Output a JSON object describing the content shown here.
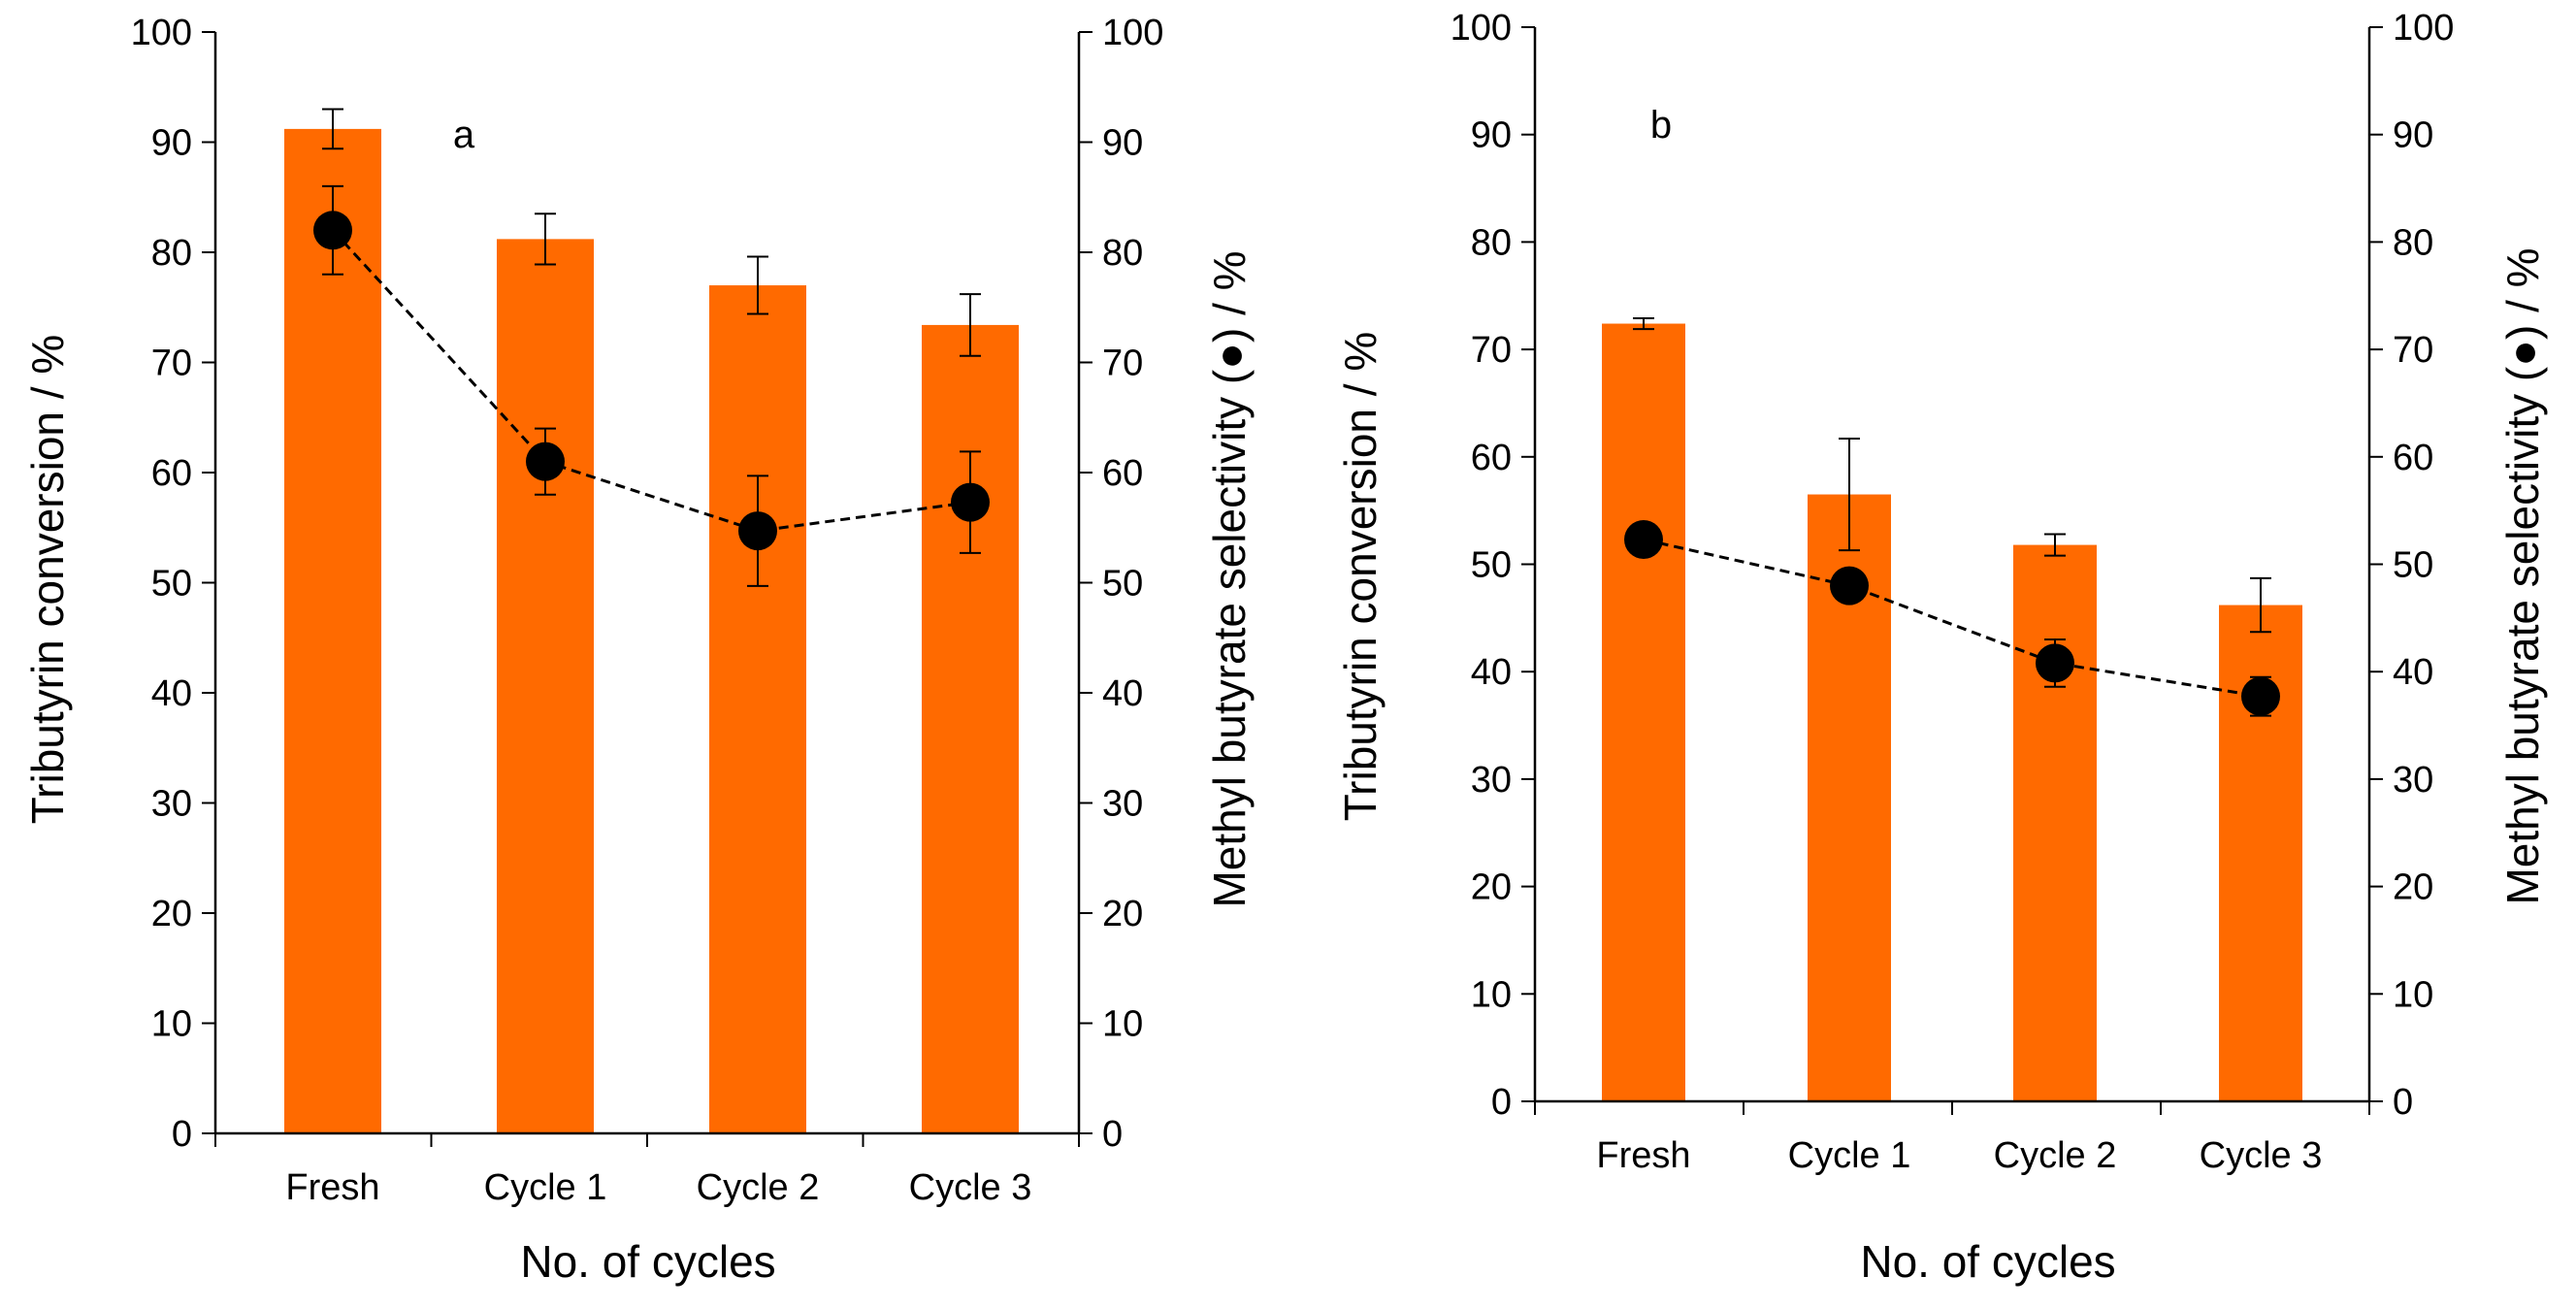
{
  "chart_data": [
    {
      "type": "bar",
      "panel_label": "a",
      "categories": [
        "Fresh",
        "Cycle 1",
        "Cycle 2",
        "Cycle 3"
      ],
      "xlabel": "No. of cycles",
      "ylabel": "Tributyrin conversion / %",
      "ylabel_right": "Methyl butyrate selectivity (●) / %",
      "ylim": [
        0,
        100
      ],
      "ylim_right": [
        0,
        100
      ],
      "yticks": [
        0,
        10,
        20,
        30,
        40,
        50,
        60,
        70,
        80,
        90,
        100
      ],
      "grid": false,
      "series": [
        {
          "name": "Tributyrin conversion",
          "kind": "bar",
          "axis": "left",
          "color": "#ff6a00",
          "values": [
            91.2,
            81.2,
            77.0,
            73.4
          ],
          "errors": [
            1.8,
            2.3,
            2.6,
            2.8
          ]
        },
        {
          "name": "Methyl butyrate selectivity",
          "kind": "line",
          "axis": "right",
          "color": "#000000",
          "line_style": "dashed",
          "values": [
            82.0,
            61.0,
            54.7,
            57.3
          ],
          "errors": [
            4.0,
            3.0,
            5.0,
            4.6
          ]
        }
      ]
    },
    {
      "type": "bar",
      "panel_label": "b",
      "categories": [
        "Fresh",
        "Cycle 1",
        "Cycle 2",
        "Cycle 3"
      ],
      "xlabel": "No. of cycles",
      "ylabel": "Tributyrin conversion / %",
      "ylabel_right": "Methyl butyrate selectivity (●) / %",
      "ylim": [
        0,
        100
      ],
      "ylim_right": [
        0,
        100
      ],
      "yticks": [
        0,
        10,
        20,
        30,
        40,
        50,
        60,
        70,
        80,
        90,
        100
      ],
      "grid": false,
      "series": [
        {
          "name": "Tributyrin conversion",
          "kind": "bar",
          "axis": "left",
          "color": "#ff6a00",
          "values": [
            72.4,
            56.5,
            51.8,
            46.2
          ],
          "errors": [
            0.5,
            5.2,
            1.0,
            2.5
          ]
        },
        {
          "name": "Methyl butyrate selectivity",
          "kind": "line",
          "axis": "right",
          "color": "#000000",
          "line_style": "dashed",
          "values": [
            52.3,
            48.0,
            40.8,
            37.7
          ],
          "errors": [
            0.8,
            0.8,
            2.2,
            1.8
          ]
        }
      ]
    }
  ]
}
